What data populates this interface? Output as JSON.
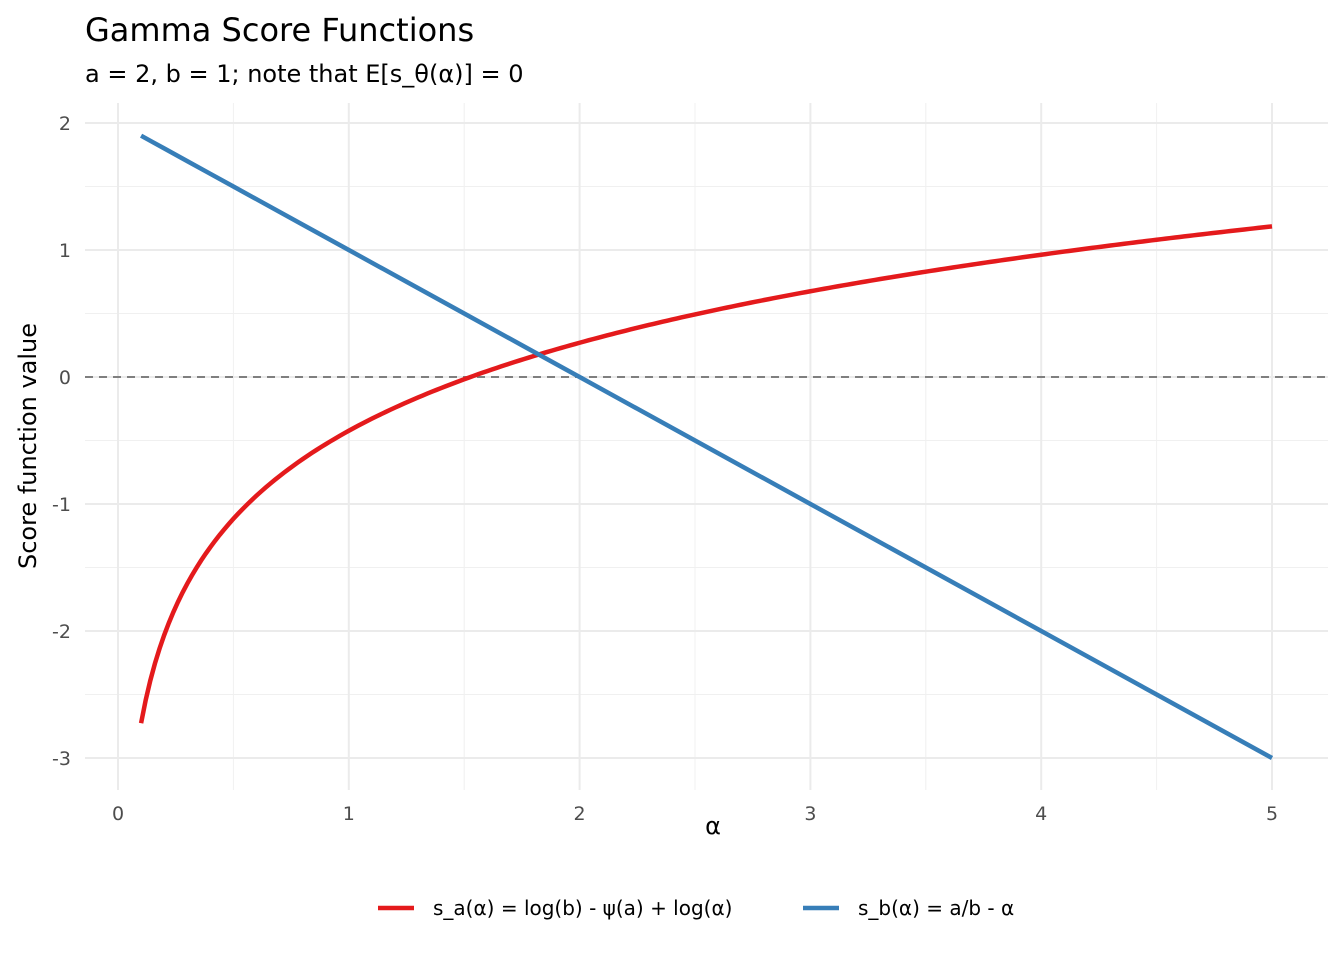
{
  "chart_data": {
    "type": "line",
    "title": "Gamma Score Functions",
    "subtitle": "a = 2, b = 1; note that E[s_θ(α)] = 0",
    "xlabel": "α",
    "ylabel": "Score function value",
    "xlim": [
      -0.15,
      5.25
    ],
    "ylim": [
      -3.15,
      2.15
    ],
    "xticks": [
      0,
      1,
      2,
      3,
      4,
      5
    ],
    "yticks": [
      -3,
      -2,
      -1,
      0,
      1,
      2
    ],
    "xtick_labels": [
      "0",
      "1",
      "2",
      "3",
      "4",
      "5"
    ],
    "ytick_labels": [
      "-3",
      "-2",
      "-1",
      "0",
      "1",
      "2"
    ],
    "grid": true,
    "legend_position": "bottom",
    "reference_line": {
      "y": 0,
      "style": "dashed",
      "color": "#7f7f7f"
    },
    "x": [
      0.1,
      0.15,
      0.2,
      0.3,
      0.4,
      0.5,
      0.6,
      0.8,
      1,
      1.25,
      1.5,
      1.75,
      2,
      2.5,
      3,
      3.5,
      4,
      4.5,
      5
    ],
    "series": [
      {
        "name": "s_a(α) = log(b) - ψ(a) + log(α)",
        "color": "#e41a1c",
        "values": [
          -2.725,
          -2.32,
          -2.032,
          -1.627,
          -1.339,
          -1.116,
          -0.934,
          -0.646,
          -0.423,
          -0.2,
          -0.017,
          0.137,
          0.27,
          0.493,
          0.676,
          0.83,
          0.963,
          1.081,
          1.186
        ]
      },
      {
        "name": "s_b(α) = a/b - α",
        "color": "#377eb8",
        "values": [
          1.9,
          1.85,
          1.8,
          1.7,
          1.6,
          1.5,
          1.4,
          1.2,
          1.0,
          0.75,
          0.5,
          0.25,
          0,
          -0.5,
          -1.0,
          -1.5,
          -2.0,
          -2.5,
          -3.0
        ]
      }
    ]
  }
}
